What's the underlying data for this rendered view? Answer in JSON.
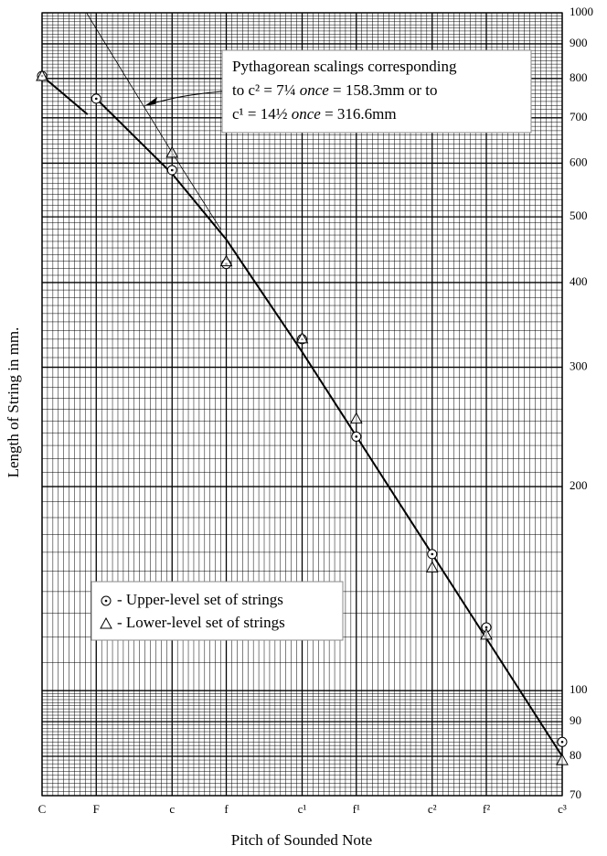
{
  "chart_data": {
    "type": "scatter",
    "x_label": "Pitch of Sounded Note",
    "y_label": "Length of String in mm.",
    "xlim": [
      0,
      48
    ],
    "xticks": [
      {
        "value": 0,
        "label": "C"
      },
      {
        "value": 5,
        "label": "F"
      },
      {
        "value": 12,
        "label": "c"
      },
      {
        "value": 17,
        "label": "f"
      },
      {
        "value": 24,
        "label": "c¹"
      },
      {
        "value": 29,
        "label": "f¹"
      },
      {
        "value": 36,
        "label": "c²"
      },
      {
        "value": 41,
        "label": "f²"
      },
      {
        "value": 48,
        "label": "c³"
      }
    ],
    "ylim": [
      70,
      1000
    ],
    "yticks": [
      70,
      80,
      90,
      100,
      200,
      300,
      400,
      500,
      600,
      700,
      800,
      900,
      1000
    ],
    "log_y": true,
    "grid": true,
    "minor_grid": true,
    "x": [
      0,
      5,
      12,
      17,
      24,
      29,
      36,
      41,
      48
    ],
    "series": [
      {
        "name": "- Upper-level set of strings",
        "marker": "circle",
        "color": "#000",
        "values": [
          807,
          747,
          586,
          426,
          330,
          237,
          159,
          124,
          84
        ]
      },
      {
        "name": "- Lower-level set of strings",
        "marker": "triangle",
        "color": "#000",
        "values": [
          807,
          null,
          622,
          430,
          331,
          252,
          152,
          121,
          79
        ]
      }
    ],
    "lines": [
      {
        "x": [
          0,
          4.2
        ],
        "values": [
          807,
          708
        ],
        "width": 2
      },
      {
        "x": [
          5,
          12,
          17,
          24,
          36,
          48
        ],
        "values": [
          747,
          579,
          463,
          316,
          159,
          80
        ],
        "width": 2
      },
      {
        "x": [
          4.1,
          12,
          16.5
        ],
        "values": [
          1000,
          622,
          479
        ],
        "width": 0.8
      }
    ],
    "annotation": [
      [
        "Pythagorean scalings corresponding"
      ],
      [
        "to c² = 7¼ ",
        "once",
        " = 158.3mm or to"
      ],
      [
        "c¹ = 14½ ",
        "once",
        " = 316.6mm"
      ]
    ]
  }
}
